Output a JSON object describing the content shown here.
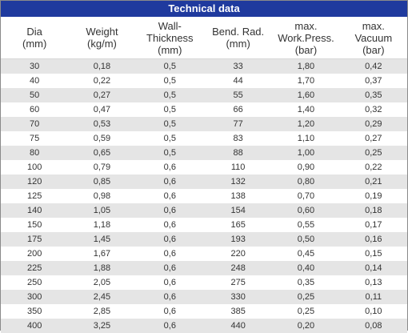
{
  "title": "Technical data",
  "headers": [
    [
      "Dia",
      "(mm)"
    ],
    [
      "Weight",
      "(kg/m)"
    ],
    [
      "Wall-",
      "Thickness",
      "(mm)"
    ],
    [
      "Bend. Rad.",
      "(mm)"
    ],
    [
      "max.",
      "Work.Press.",
      "(bar)"
    ],
    [
      "max.",
      "Vacuum",
      "(bar)"
    ]
  ],
  "rows": [
    [
      "30",
      "0,18",
      "0,5",
      "33",
      "1,80",
      "0,42"
    ],
    [
      "40",
      "0,22",
      "0,5",
      "44",
      "1,70",
      "0,37"
    ],
    [
      "50",
      "0,27",
      "0,5",
      "55",
      "1,60",
      "0,35"
    ],
    [
      "60",
      "0,47",
      "0,5",
      "66",
      "1,40",
      "0,32"
    ],
    [
      "70",
      "0,53",
      "0,5",
      "77",
      "1,20",
      "0,29"
    ],
    [
      "75",
      "0,59",
      "0,5",
      "83",
      "1,10",
      "0,27"
    ],
    [
      "80",
      "0,65",
      "0,5",
      "88",
      "1,00",
      "0,25"
    ],
    [
      "100",
      "0,79",
      "0,6",
      "110",
      "0,90",
      "0,22"
    ],
    [
      "120",
      "0,85",
      "0,6",
      "132",
      "0,80",
      "0,21"
    ],
    [
      "125",
      "0,98",
      "0,6",
      "138",
      "0,70",
      "0,19"
    ],
    [
      "140",
      "1,05",
      "0,6",
      "154",
      "0,60",
      "0,18"
    ],
    [
      "150",
      "1,18",
      "0,6",
      "165",
      "0,55",
      "0,17"
    ],
    [
      "175",
      "1,45",
      "0,6",
      "193",
      "0,50",
      "0,16"
    ],
    [
      "200",
      "1,67",
      "0,6",
      "220",
      "0,45",
      "0,15"
    ],
    [
      "225",
      "1,88",
      "0,6",
      "248",
      "0,40",
      "0,14"
    ],
    [
      "250",
      "2,05",
      "0,6",
      "275",
      "0,35",
      "0,13"
    ],
    [
      "300",
      "2,45",
      "0,6",
      "330",
      "0,25",
      "0,11"
    ],
    [
      "350",
      "2,85",
      "0,6",
      "385",
      "0,25",
      "0,10"
    ],
    [
      "400",
      "3,25",
      "0,6",
      "440",
      "0,20",
      "0,08"
    ]
  ],
  "colors": {
    "title_bar": "#1f3a9e",
    "title_text": "#ffffff",
    "stripe": "#e5e5e5",
    "text": "#333333"
  }
}
